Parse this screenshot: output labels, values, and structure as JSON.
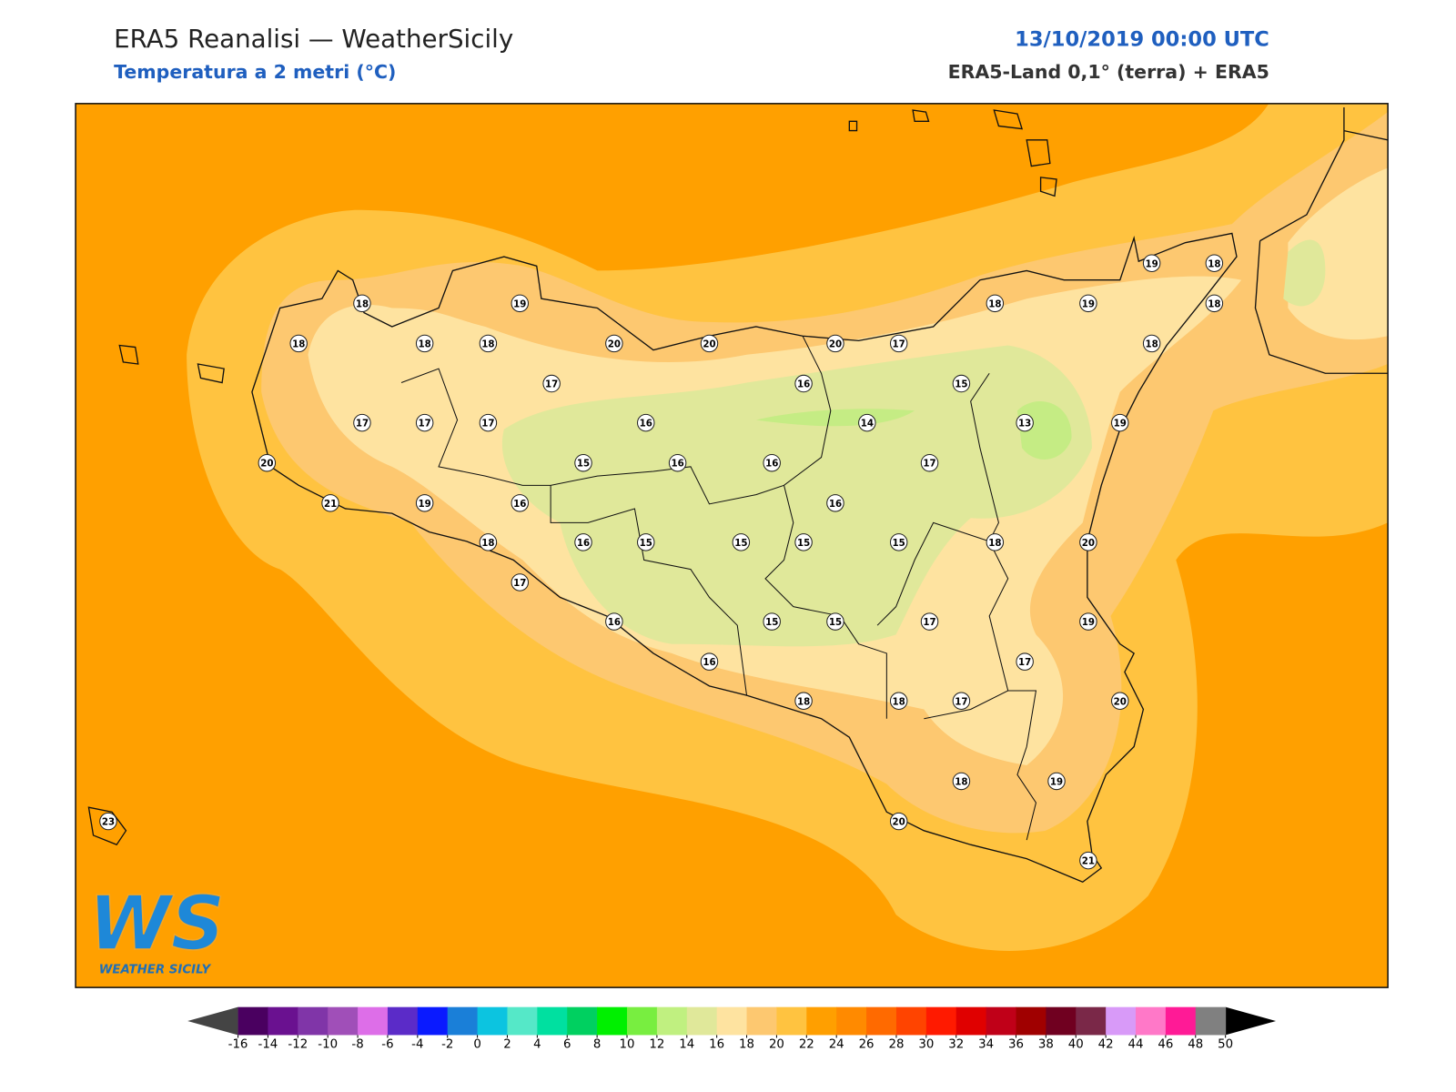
{
  "map_data": {
    "title": "ERA5 Reanalisi — WeatherSicily",
    "subtitle": "Temperatura a 2 metri (°C)",
    "date": "13/10/2019 00:00 UTC",
    "source": "ERA5-Land 0,1° (terra) + ERA5",
    "logo": {
      "letters": "WS",
      "name": "WEATHER SICILY"
    },
    "stations": [
      18,
      19,
      18,
      18,
      18,
      20,
      20,
      20,
      17,
      18,
      19,
      19,
      18,
      18,
      18,
      17,
      16,
      15,
      17,
      17,
      17,
      16,
      14,
      13,
      19,
      20,
      15,
      16,
      16,
      17,
      21,
      19,
      16,
      16,
      18,
      16,
      15,
      15,
      15,
      15,
      18,
      20,
      17,
      16,
      15,
      15,
      17,
      19,
      16,
      17,
      18,
      18,
      17,
      20,
      18,
      19,
      20,
      21,
      23
    ],
    "colorbar": {
      "ticks": [
        -16,
        -14,
        -12,
        -10,
        -8,
        -6,
        -4,
        -2,
        0,
        2,
        4,
        6,
        8,
        10,
        12,
        14,
        16,
        18,
        20,
        22,
        24,
        26,
        28,
        30,
        32,
        34,
        36,
        38,
        40,
        42,
        44,
        46,
        48,
        50
      ],
      "colors": [
        "#4a0060",
        "#6a1190",
        "#8035a8",
        "#a04fb8",
        "#dd6ee8",
        "#5b2bc8",
        "#0a1aff",
        "#1a7fd8",
        "#0cc4e0",
        "#55e8c8",
        "#00e0a0",
        "#00d060",
        "#00f000",
        "#78ee40",
        "#c0f080",
        "#e0e89a",
        "#fee3a0",
        "#fdc870",
        "#ffc340",
        "#ff9f00",
        "#ff8a00",
        "#ff6a00",
        "#ff4400",
        "#ff1a00",
        "#e00000",
        "#c00018",
        "#a00000",
        "#700020",
        "#7a2848",
        "#d89af8",
        "#ff78c8",
        "#ff1a96",
        "#808080",
        "#303030"
      ]
    }
  }
}
